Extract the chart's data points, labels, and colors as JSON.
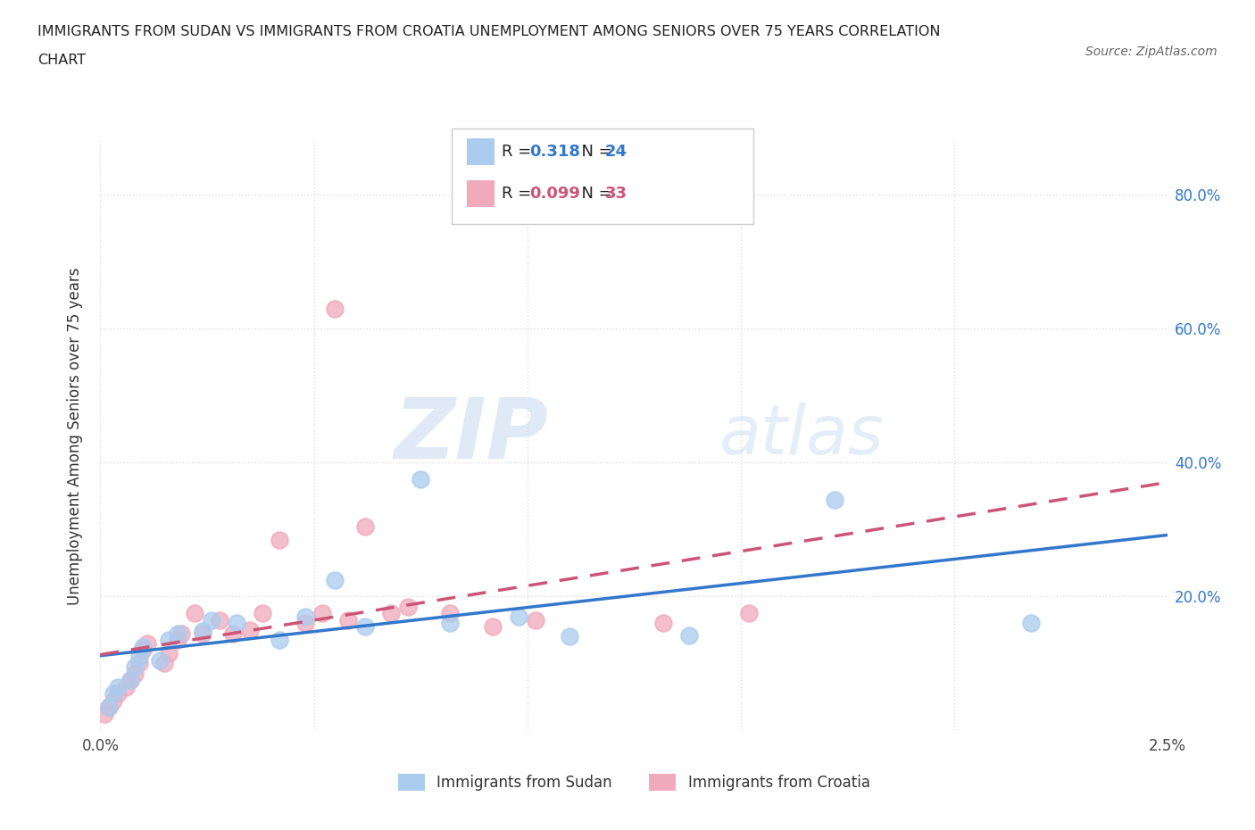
{
  "title_line1": "IMMIGRANTS FROM SUDAN VS IMMIGRANTS FROM CROATIA UNEMPLOYMENT AMONG SENIORS OVER 75 YEARS CORRELATION",
  "title_line2": "CHART",
  "source": "Source: ZipAtlas.com",
  "ylabel": "Unemployment Among Seniors over 75 years",
  "xlim": [
    0.0,
    0.025
  ],
  "ylim": [
    0.0,
    0.88
  ],
  "x_ticks": [
    0.0,
    0.005,
    0.01,
    0.015,
    0.02,
    0.025
  ],
  "x_tick_labels": [
    "0.0%",
    "",
    "",
    "",
    "",
    "2.5%"
  ],
  "y_ticks": [
    0.0,
    0.2,
    0.4,
    0.6,
    0.8
  ],
  "y_tick_labels": [
    "",
    "",
    "",
    "",
    ""
  ],
  "sudan_color": "#aaccee",
  "croatia_color": "#f0aabb",
  "sudan_line_color": "#3377cc",
  "croatia_line_color": "#cc5577",
  "sudan_R": 0.318,
  "sudan_N": 24,
  "croatia_R": 0.099,
  "croatia_N": 33,
  "watermark_zip": "ZIP",
  "watermark_atlas": "atlas",
  "sudan_x": [
    0.0002,
    0.0003,
    0.0004,
    0.0007,
    0.0008,
    0.0009,
    0.001,
    0.0014,
    0.0016,
    0.0018,
    0.0024,
    0.0026,
    0.0032,
    0.0042,
    0.0048,
    0.0055,
    0.0062,
    0.0075,
    0.0082,
    0.0098,
    0.011,
    0.0138,
    0.0172,
    0.0218
  ],
  "sudan_y": [
    0.035,
    0.055,
    0.065,
    0.075,
    0.095,
    0.11,
    0.125,
    0.105,
    0.135,
    0.145,
    0.148,
    0.165,
    0.16,
    0.135,
    0.17,
    0.225,
    0.155,
    0.375,
    0.16,
    0.17,
    0.14,
    0.142,
    0.345,
    0.16
  ],
  "croatia_x": [
    0.0001,
    0.0002,
    0.0003,
    0.0004,
    0.0006,
    0.0007,
    0.0008,
    0.0009,
    0.001,
    0.0011,
    0.0015,
    0.0016,
    0.0018,
    0.0019,
    0.0022,
    0.0024,
    0.0028,
    0.0031,
    0.0035,
    0.0038,
    0.0042,
    0.0048,
    0.0052,
    0.0055,
    0.0058,
    0.0062,
    0.0068,
    0.0072,
    0.0082,
    0.0092,
    0.0102,
    0.0132,
    0.0152
  ],
  "croatia_y": [
    0.025,
    0.035,
    0.045,
    0.055,
    0.065,
    0.075,
    0.085,
    0.1,
    0.12,
    0.13,
    0.1,
    0.115,
    0.135,
    0.145,
    0.175,
    0.145,
    0.165,
    0.145,
    0.15,
    0.175,
    0.285,
    0.16,
    0.175,
    0.63,
    0.165,
    0.305,
    0.175,
    0.185,
    0.175,
    0.155,
    0.165,
    0.16,
    0.175
  ],
  "grid_color": "#dddddd",
  "grid_style": "dotted",
  "background_color": "#ffffff",
  "right_y_tick_labels": [
    "80.0%",
    "60.0%",
    "40.0%",
    "20.0%"
  ],
  "right_y_ticks": [
    0.8,
    0.6,
    0.4,
    0.2
  ]
}
